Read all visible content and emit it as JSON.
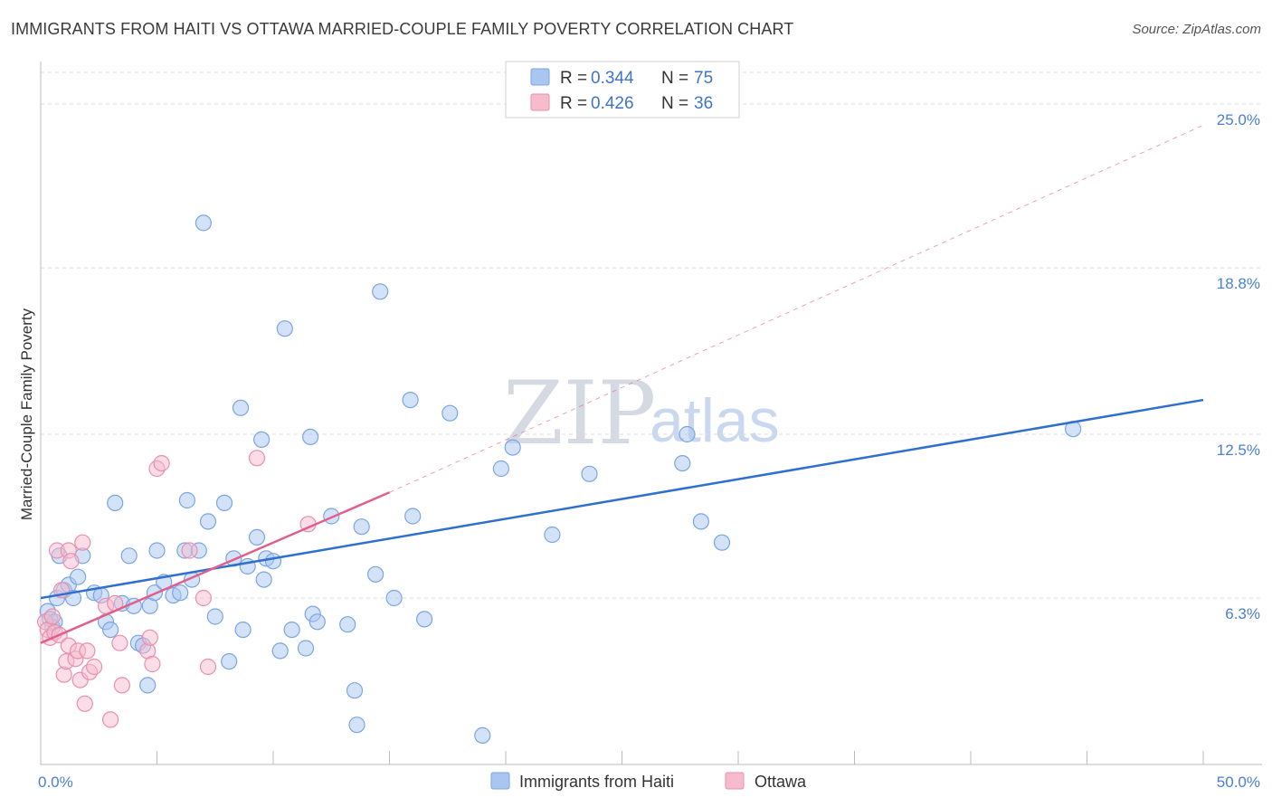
{
  "header": {
    "title": "IMMIGRANTS FROM HAITI VS OTTAWA MARRIED-COUPLE FAMILY POVERTY CORRELATION CHART",
    "source": "Source: ZipAtlas.com"
  },
  "watermark": {
    "zip": "ZIP",
    "atlas": "atlas"
  },
  "colors": {
    "haiti_fill": "#aac6f0",
    "haiti_stroke": "#7aa5e3",
    "haiti_line": "#2f6fce",
    "ottawa_fill": "#f6bccd",
    "ottawa_stroke": "#ea8fab",
    "ottawa_line": "#e0608c",
    "grid": "#dcdcdc",
    "tick_text": "#4a7fd4"
  },
  "legend": {
    "rows": [
      {
        "r_label": "R =",
        "r_value": "0.344",
        "n_label": "N =",
        "n_value": "75"
      },
      {
        "r_label": "R =",
        "r_value": "0.426",
        "n_label": "N =",
        "n_value": "36"
      }
    ]
  },
  "bottom_legend": {
    "haiti": "Immigrants from Haiti",
    "ottawa": "Ottawa"
  },
  "chart_data": {
    "type": "scatter",
    "title": "IMMIGRANTS FROM HAITI VS OTTAWA MARRIED-COUPLE FAMILY POVERTY CORRELATION CHART",
    "xlabel": "",
    "ylabel": "Married-Couple Family Poverty",
    "xlim": [
      0,
      50
    ],
    "ylim": [
      0,
      26.2
    ],
    "x_tick_labels": [
      "0.0%",
      "50.0%"
    ],
    "y_ticks": [
      6.3,
      12.5,
      18.8,
      25.0
    ],
    "y_tick_labels": [
      "6.3%",
      "12.5%",
      "18.8%",
      "25.0%"
    ],
    "series": [
      {
        "name": "Immigrants from Haiti",
        "r": 0.344,
        "n": 75,
        "trend": {
          "x0": 0,
          "y0": 6.3,
          "x1": 50,
          "y1": 13.8
        },
        "points": [
          [
            0.3,
            5.8
          ],
          [
            0.4,
            5.5
          ],
          [
            0.5,
            5.2
          ],
          [
            0.6,
            5.4
          ],
          [
            0.7,
            6.3
          ],
          [
            0.8,
            7.9
          ],
          [
            1.0,
            6.6
          ],
          [
            1.2,
            6.8
          ],
          [
            1.4,
            6.3
          ],
          [
            1.6,
            7.1
          ],
          [
            1.8,
            7.9
          ],
          [
            2.3,
            6.5
          ],
          [
            2.6,
            6.4
          ],
          [
            2.8,
            5.4
          ],
          [
            3.0,
            5.1
          ],
          [
            3.2,
            9.9
          ],
          [
            3.5,
            6.1
          ],
          [
            3.8,
            7.9
          ],
          [
            4.0,
            6.0
          ],
          [
            4.2,
            4.6
          ],
          [
            4.4,
            4.5
          ],
          [
            4.6,
            3.0
          ],
          [
            4.7,
            6.0
          ],
          [
            4.9,
            6.5
          ],
          [
            5.0,
            8.1
          ],
          [
            5.3,
            6.9
          ],
          [
            5.7,
            6.4
          ],
          [
            6.0,
            6.5
          ],
          [
            6.2,
            8.1
          ],
          [
            6.3,
            10.0
          ],
          [
            6.5,
            7.0
          ],
          [
            6.8,
            8.1
          ],
          [
            7.0,
            20.5
          ],
          [
            7.2,
            9.2
          ],
          [
            7.5,
            5.6
          ],
          [
            7.9,
            9.9
          ],
          [
            8.1,
            3.9
          ],
          [
            8.3,
            7.8
          ],
          [
            8.6,
            13.5
          ],
          [
            8.7,
            5.1
          ],
          [
            8.9,
            7.5
          ],
          [
            9.3,
            8.6
          ],
          [
            9.5,
            12.3
          ],
          [
            9.6,
            7.0
          ],
          [
            9.7,
            7.8
          ],
          [
            10.0,
            7.7
          ],
          [
            10.3,
            4.3
          ],
          [
            10.5,
            16.5
          ],
          [
            10.8,
            5.1
          ],
          [
            11.4,
            4.4
          ],
          [
            11.6,
            12.4
          ],
          [
            11.7,
            5.7
          ],
          [
            11.9,
            5.4
          ],
          [
            12.5,
            9.4
          ],
          [
            13.2,
            5.3
          ],
          [
            13.5,
            2.8
          ],
          [
            13.6,
            1.5
          ],
          [
            13.8,
            9.0
          ],
          [
            14.4,
            7.2
          ],
          [
            14.6,
            17.9
          ],
          [
            15.2,
            6.3
          ],
          [
            15.9,
            13.8
          ],
          [
            16.0,
            9.4
          ],
          [
            16.5,
            5.5
          ],
          [
            17.6,
            13.3
          ],
          [
            19.0,
            1.1
          ],
          [
            19.8,
            11.2
          ],
          [
            20.3,
            12.0
          ],
          [
            22.0,
            8.7
          ],
          [
            23.6,
            11.0
          ],
          [
            27.6,
            11.4
          ],
          [
            27.8,
            12.5
          ],
          [
            28.4,
            9.2
          ],
          [
            29.3,
            8.4
          ],
          [
            44.4,
            12.7
          ]
        ]
      },
      {
        "name": "Ottawa",
        "r": 0.426,
        "n": 36,
        "trend": {
          "x0": 0,
          "y0": 4.6,
          "x1": 15,
          "y1": 10.3,
          "dash_x1": 50,
          "dash_y1": 24.2
        },
        "points": [
          [
            0.2,
            5.4
          ],
          [
            0.3,
            5.1
          ],
          [
            0.4,
            4.8
          ],
          [
            0.5,
            5.6
          ],
          [
            0.6,
            5.0
          ],
          [
            0.7,
            8.1
          ],
          [
            0.8,
            4.9
          ],
          [
            0.9,
            6.6
          ],
          [
            1.0,
            3.4
          ],
          [
            1.1,
            3.9
          ],
          [
            1.2,
            4.5
          ],
          [
            1.2,
            8.1
          ],
          [
            1.3,
            7.7
          ],
          [
            1.5,
            4.0
          ],
          [
            1.6,
            4.3
          ],
          [
            1.7,
            3.2
          ],
          [
            1.8,
            8.4
          ],
          [
            1.9,
            2.3
          ],
          [
            2.0,
            4.3
          ],
          [
            2.1,
            3.5
          ],
          [
            2.3,
            3.7
          ],
          [
            2.8,
            6.0
          ],
          [
            3.0,
            1.7
          ],
          [
            3.2,
            6.1
          ],
          [
            3.4,
            4.6
          ],
          [
            3.5,
            3.0
          ],
          [
            4.6,
            4.3
          ],
          [
            4.7,
            4.8
          ],
          [
            4.8,
            3.8
          ],
          [
            5.0,
            11.2
          ],
          [
            5.2,
            11.4
          ],
          [
            6.4,
            8.1
          ],
          [
            7.0,
            6.3
          ],
          [
            7.2,
            3.7
          ],
          [
            9.3,
            11.6
          ],
          [
            11.5,
            9.1
          ]
        ]
      }
    ]
  }
}
